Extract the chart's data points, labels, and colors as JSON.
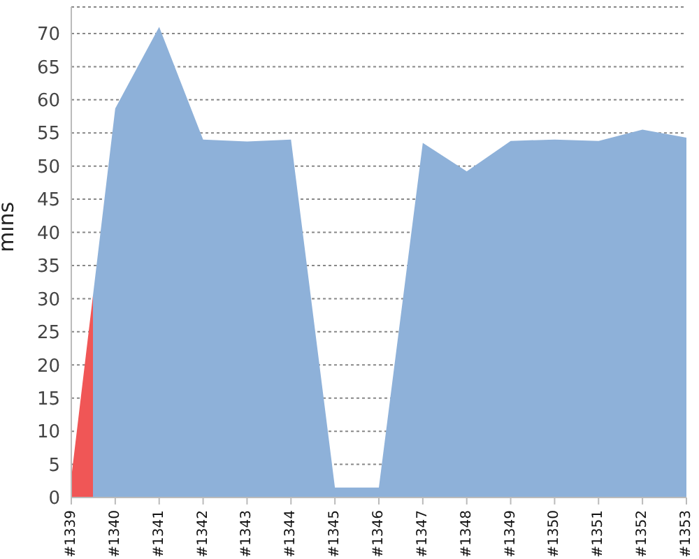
{
  "chart_data": {
    "type": "area",
    "ylabel": "mins",
    "categories": [
      "#1339",
      "#1340",
      "#1341",
      "#1342",
      "#1343",
      "#1344",
      "#1345",
      "#1346",
      "#1347",
      "#1348",
      "#1349",
      "#1350",
      "#1351",
      "#1352",
      "#1353"
    ],
    "series": [
      {
        "values": [
          3,
          58.7,
          71,
          54,
          53.7,
          54,
          1.5,
          1.5,
          53.5,
          49.2,
          53.8,
          54,
          53.8,
          55.5,
          54.3
        ],
        "colors": [
          "#f05656",
          "#8eb1d9",
          "#8eb1d9",
          "#8eb1d9",
          "#8eb1d9",
          "#8eb1d9",
          "#8eb1d9",
          "#8eb1d9",
          "#8eb1d9",
          "#8eb1d9",
          "#8eb1d9",
          "#8eb1d9",
          "#8eb1d9",
          "#8eb1d9",
          "#8eb1d9"
        ]
      }
    ],
    "ylim": [
      0,
      74
    ],
    "yticks": [
      0,
      5,
      10,
      15,
      20,
      25,
      30,
      35,
      40,
      45,
      50,
      55,
      60,
      65,
      70
    ],
    "grid": "y"
  }
}
